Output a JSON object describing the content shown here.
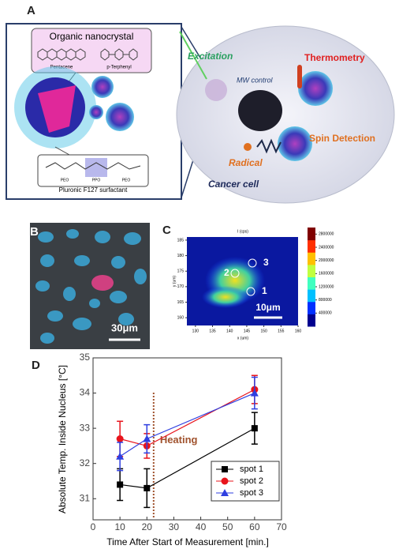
{
  "panel_a": {
    "label": "A",
    "box_title": "Organic nanocrystal",
    "molecules": [
      "Pentacene",
      "p-Terphenyl"
    ],
    "blocks": [
      "PEO",
      "PPO",
      "PEO"
    ],
    "surfactant": "Pluronic F127 surfactant",
    "excitation": "Excitation",
    "mw": "MW control",
    "thermometry": "Thermometry",
    "spin": "Spin Detection",
    "radical": "Radical",
    "cell": "Cancer cell"
  },
  "panel_b": {
    "label": "B",
    "scale_bar": "30μm"
  },
  "panel_c": {
    "label": "C",
    "title": "I (cps)",
    "x_label": "x (um)",
    "y_label": "y (um)",
    "xlim": [
      127.5,
      160
    ],
    "xticks": [
      130,
      135,
      140,
      145,
      150,
      155,
      160
    ],
    "ylim": [
      157.5,
      186
    ],
    "yticks": [
      160,
      165,
      170,
      175,
      180,
      185
    ],
    "clim": [
      0,
      3000000
    ],
    "cticks": [
      400000,
      800000,
      1200000,
      1600000,
      2000000,
      2400000,
      2800000
    ],
    "spots": [
      "1",
      "2",
      "3"
    ],
    "scale_bar": "10μm"
  },
  "chart_data": {
    "type": "line",
    "label": "D",
    "x_label": "Time After Start of Measurement [min.]",
    "y_label": "Absolute Temp. Inside Nucleus [°C]",
    "x": [
      10,
      20,
      60
    ],
    "xlim": [
      0,
      70
    ],
    "xticks": [
      0,
      10,
      20,
      30,
      40,
      50,
      60,
      70
    ],
    "ylim": [
      30.4,
      35
    ],
    "yticks": [
      31,
      32,
      33,
      34,
      35
    ],
    "series": [
      {
        "name": "spot 1",
        "color": "#000000",
        "marker": "square",
        "values": [
          31.4,
          31.3,
          33.0
        ],
        "errors": [
          0.45,
          0.55,
          0.45
        ]
      },
      {
        "name": "spot 2",
        "color": "#e8141c",
        "marker": "circle",
        "values": [
          32.7,
          32.5,
          34.1
        ],
        "errors": [
          0.5,
          0.35,
          0.4
        ]
      },
      {
        "name": "spot 3",
        "color": "#2f3fe0",
        "marker": "triangle",
        "values": [
          32.2,
          32.7,
          34.0
        ],
        "errors": [
          0.4,
          0.4,
          0.45
        ]
      }
    ],
    "annotation": {
      "text": "Heating",
      "x": 22.5
    },
    "legend": "lower right"
  }
}
